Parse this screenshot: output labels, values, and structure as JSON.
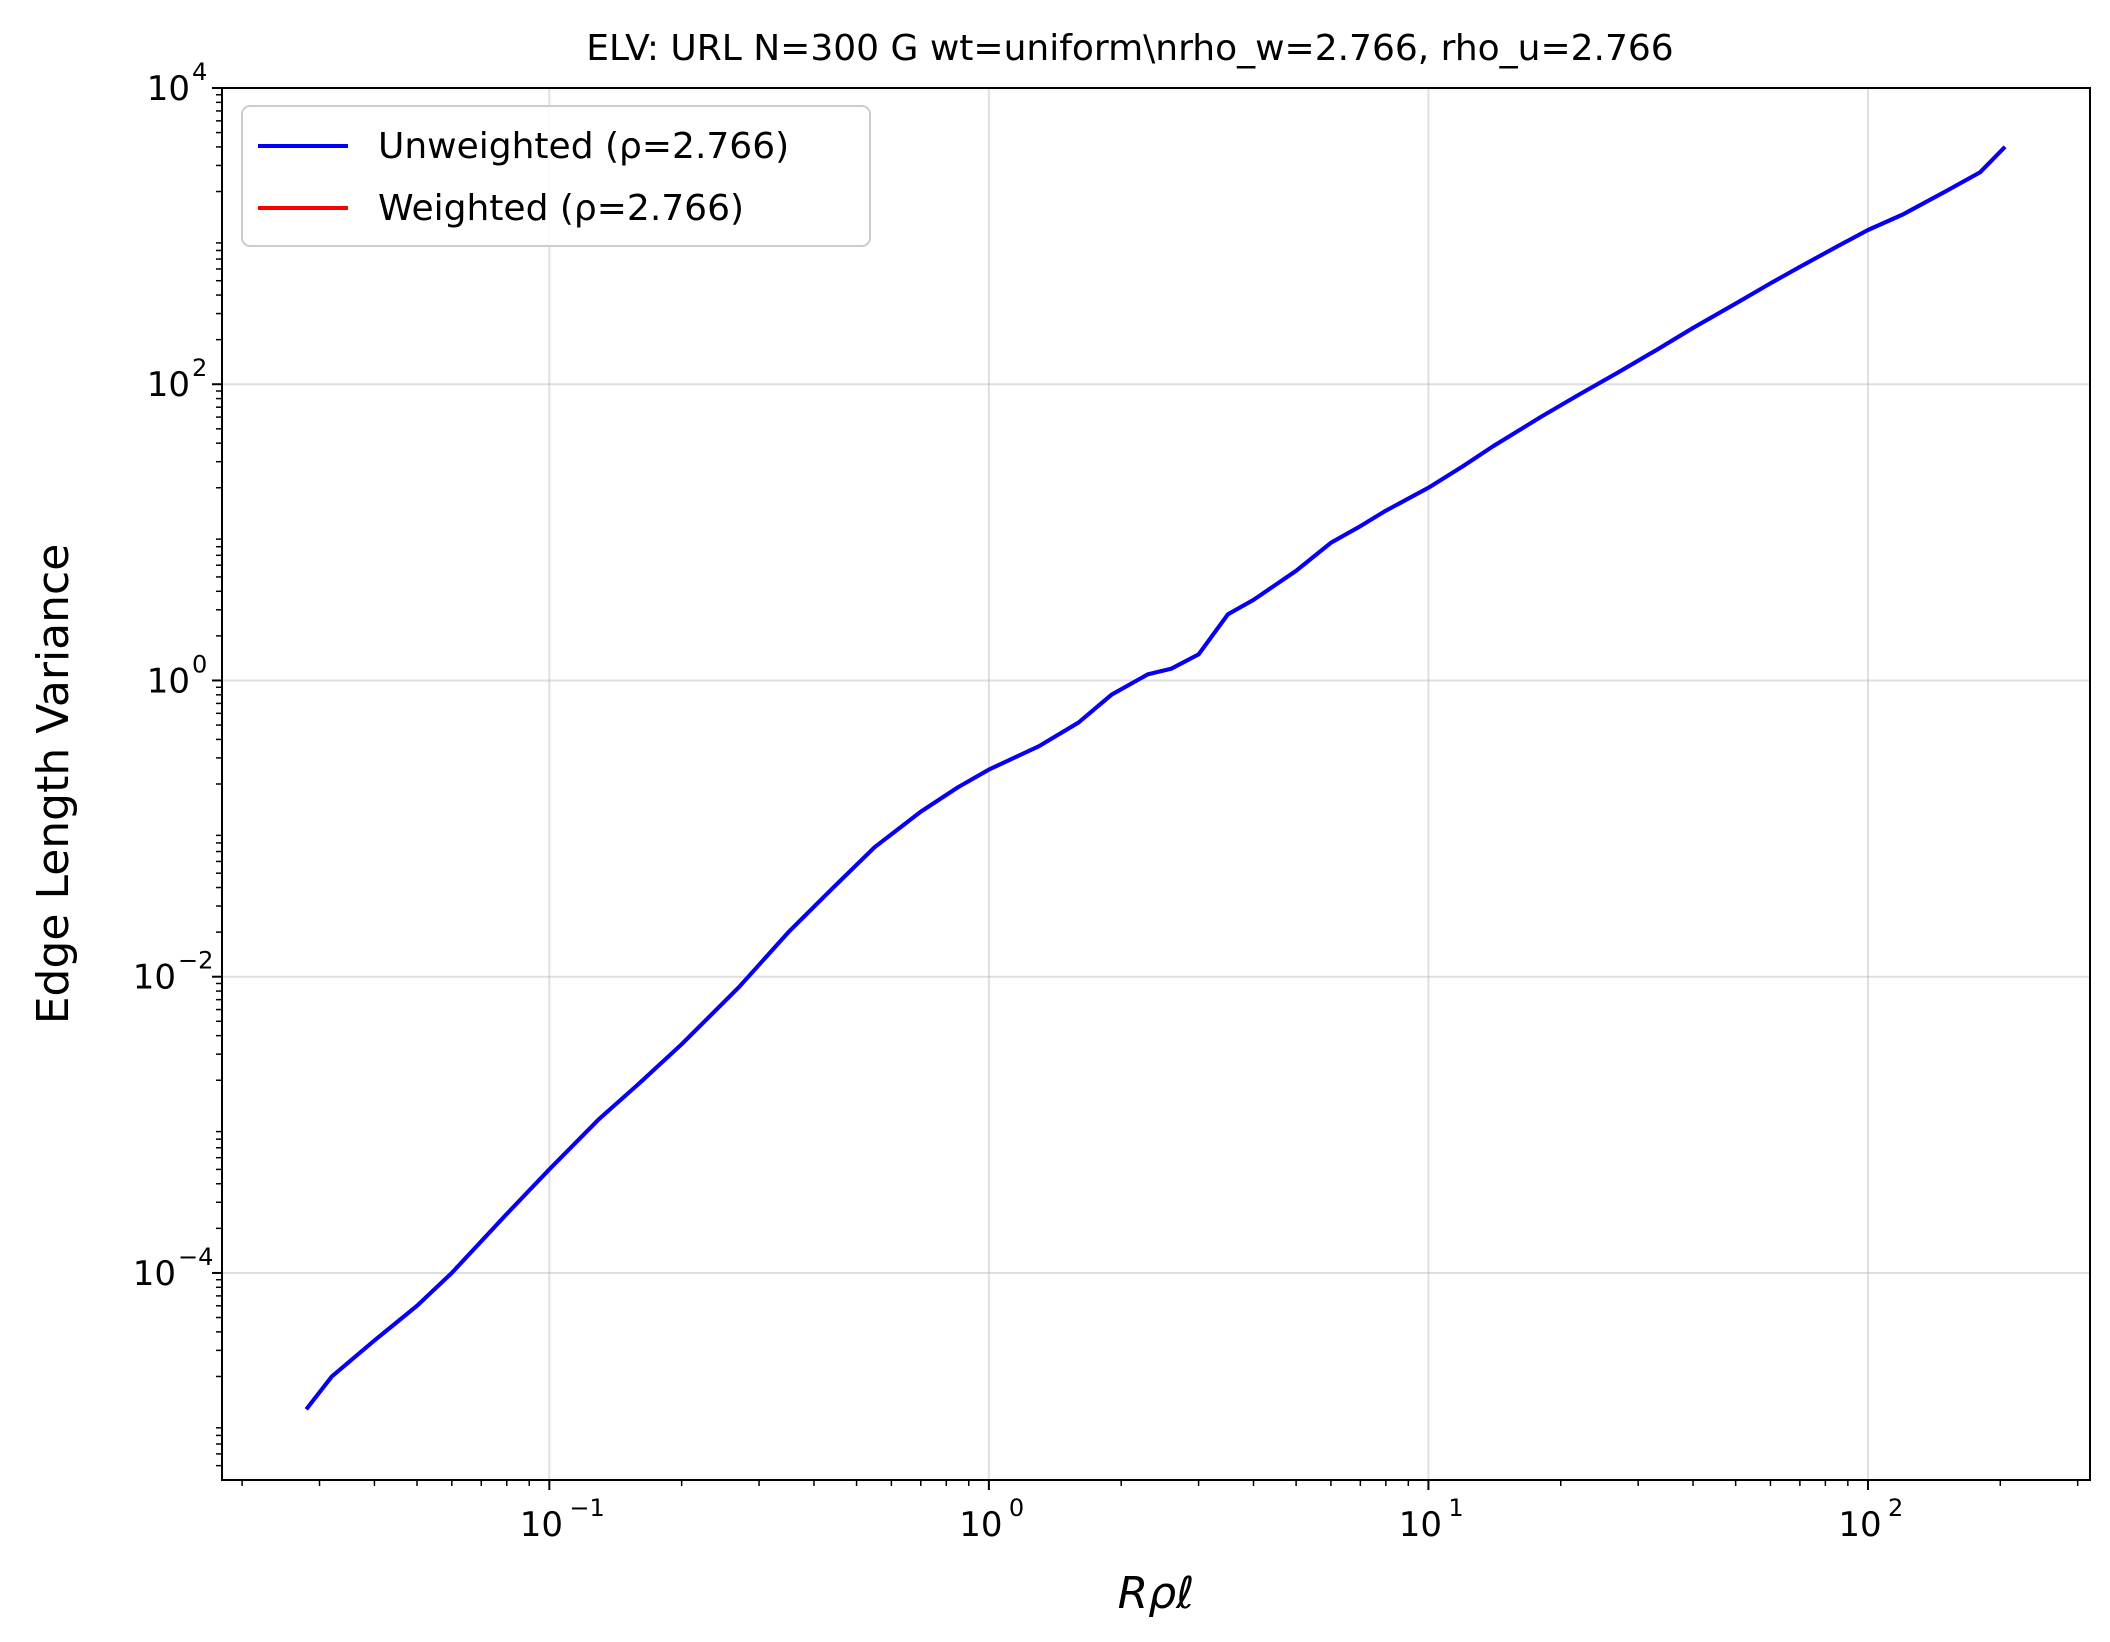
{
  "chart_data": {
    "type": "line",
    "title": "ELV: URL N=300 G wt=uniform\\nrho_w=2.766, rho_u=2.766",
    "xlabel": "Rρℓ",
    "ylabel": "Edge Length Variance",
    "xscale": "log",
    "yscale": "log",
    "xlim": [
      0.018,
      320
    ],
    "ylim": [
      4e-06,
      10000
    ],
    "grid": true,
    "legend_position": "top-left",
    "x_ticks": [
      {
        "value": 0.1,
        "base": "10",
        "exp": "−1"
      },
      {
        "value": 1,
        "base": "10",
        "exp": "0"
      },
      {
        "value": 10,
        "base": "10",
        "exp": "1"
      },
      {
        "value": 100,
        "base": "10",
        "exp": "2"
      }
    ],
    "y_ticks": [
      {
        "value": 0.0001,
        "base": "10",
        "exp": "−4"
      },
      {
        "value": 0.01,
        "base": "10",
        "exp": "−2"
      },
      {
        "value": 1,
        "base": "10",
        "exp": "0"
      },
      {
        "value": 100,
        "base": "10",
        "exp": "2"
      },
      {
        "value": 10000,
        "base": "10",
        "exp": "4"
      }
    ],
    "series": [
      {
        "name": "Unweighted (ρ=2.766)",
        "color": "#0000ff",
        "x": [
          0.028,
          0.032,
          0.04,
          0.05,
          0.06,
          0.08,
          0.1,
          0.13,
          0.16,
          0.2,
          0.27,
          0.35,
          0.45,
          0.55,
          0.7,
          0.85,
          1.0,
          1.3,
          1.6,
          1.9,
          2.3,
          2.6,
          3.0,
          3.5,
          4.0,
          5.0,
          6.0,
          7.0,
          8.0,
          10,
          12,
          14,
          18,
          22,
          27,
          33,
          40,
          50,
          60,
          70,
          85,
          100,
          120,
          150,
          180,
          205
        ],
        "y": [
          1.2e-05,
          2e-05,
          3.5e-05,
          6e-05,
          0.0001,
          0.00025,
          0.0005,
          0.0011,
          0.0019,
          0.0035,
          0.0085,
          0.02,
          0.042,
          0.075,
          0.13,
          0.19,
          0.25,
          0.36,
          0.52,
          0.8,
          1.1,
          1.2,
          1.5,
          2.8,
          3.5,
          5.5,
          8.5,
          11,
          14,
          20,
          28,
          38,
          60,
          85,
          120,
          170,
          240,
          350,
          480,
          620,
          850,
          1100,
          1400,
          2000,
          2700,
          4000
        ]
      },
      {
        "name": "Weighted (ρ=2.766)",
        "color": "#ff0000",
        "x": [
          0.028,
          0.032,
          0.04,
          0.05,
          0.06,
          0.08,
          0.1,
          0.13,
          0.16,
          0.2,
          0.27,
          0.35,
          0.45,
          0.55,
          0.7,
          0.85,
          1.0,
          1.3,
          1.6,
          1.9,
          2.3,
          2.6,
          3.0,
          3.5,
          4.0,
          5.0,
          6.0,
          7.0,
          8.0,
          10,
          12,
          14,
          18,
          22,
          27,
          33,
          40,
          50,
          60,
          70,
          85,
          100,
          120,
          150,
          180,
          205
        ],
        "y": [
          1.2e-05,
          2e-05,
          3.5e-05,
          6e-05,
          0.0001,
          0.00025,
          0.0005,
          0.0011,
          0.0019,
          0.0035,
          0.0085,
          0.02,
          0.042,
          0.075,
          0.13,
          0.19,
          0.25,
          0.36,
          0.52,
          0.8,
          1.1,
          1.2,
          1.5,
          2.8,
          3.5,
          5.5,
          8.5,
          11,
          14,
          20,
          28,
          38,
          60,
          85,
          120,
          170,
          240,
          350,
          480,
          620,
          850,
          1100,
          1400,
          2000,
          2700,
          4000
        ]
      }
    ]
  }
}
